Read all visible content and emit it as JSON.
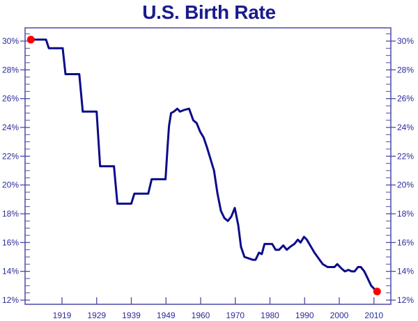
{
  "chart_data": {
    "type": "line",
    "title": "U.S. Birth Rate",
    "xlabel": "",
    "ylabel": "",
    "x_tick_labels": [
      "1919",
      "1929",
      "1939",
      "1949",
      "1960",
      "1970",
      "1980",
      "1990",
      "2000",
      "2010"
    ],
    "y_tick_labels": [
      "12%",
      "14%",
      "16%",
      "18%",
      "20%",
      "22%",
      "24%",
      "26%",
      "28%",
      "30%"
    ],
    "ylim": [
      12,
      30.9
    ],
    "xlim": [
      1909,
      2014
    ],
    "grid": false,
    "legend": null,
    "y_axis_both_sides": true,
    "line_color": "#0b0b8a",
    "marker_color": "#ff0000",
    "highlighted_points": [
      {
        "x": 1910,
        "y": 30.1
      },
      {
        "x": 2010,
        "y": 12.6
      }
    ],
    "series": [
      {
        "name": "U.S. Birth Rate",
        "x": [
          1910,
          1914.4,
          1915.2,
          1919.2,
          1920,
          1924,
          1925,
          1929,
          1930,
          1934,
          1935,
          1939,
          1939.9,
          1943.9,
          1944.9,
          1948.9,
          1949.5,
          1949.9,
          1950.5,
          1951.3,
          1952.3,
          1953.1,
          1954.1,
          1955.7,
          1956.9,
          1957.9,
          1958.9,
          1959.9,
          1960.9,
          1962.9,
          1963.9,
          1964.9,
          1965.9,
          1966.9,
          1967.9,
          1968.9,
          1969.9,
          1970.7,
          1971.7,
          1972.9,
          1974.1,
          1974.9,
          1975.9,
          1976.7,
          1977.5,
          1979.7,
          1980.7,
          1981.7,
          1982.9,
          1983.9,
          1984.9,
          1986.1,
          1987.1,
          1987.9,
          1988.9,
          1989.7,
          1990.7,
          1991.9,
          1993.1,
          1994.3,
          1995.7,
          1996.7,
          1997.7,
          1998.5,
          1999.7,
          2000.7,
          2001.7,
          2002.7,
          2003.5,
          2004.5,
          2005.3,
          2006.3,
          2007.3,
          2008.3,
          2009.5,
          2010
        ],
        "y": [
          30.1,
          30.1,
          29.5,
          29.5,
          27.7,
          27.7,
          25.1,
          25.1,
          21.3,
          21.3,
          18.7,
          18.7,
          19.4,
          19.4,
          20.4,
          20.4,
          22.7,
          24.1,
          25.0,
          25.1,
          25.3,
          25.1,
          25.2,
          25.3,
          24.5,
          24.3,
          23.7,
          23.3,
          22.6,
          21.0,
          19.4,
          18.2,
          17.7,
          17.5,
          17.8,
          18.4,
          17.2,
          15.7,
          15.0,
          14.9,
          14.8,
          14.8,
          15.3,
          15.2,
          15.9,
          15.9,
          15.5,
          15.5,
          15.8,
          15.5,
          15.7,
          15.9,
          16.2,
          16.0,
          16.4,
          16.2,
          15.8,
          15.3,
          14.9,
          14.5,
          14.3,
          14.3,
          14.3,
          14.5,
          14.2,
          14.0,
          14.1,
          14.0,
          14.0,
          14.3,
          14.3,
          14.0,
          13.5,
          13.0,
          12.7,
          12.6
        ]
      }
    ]
  }
}
